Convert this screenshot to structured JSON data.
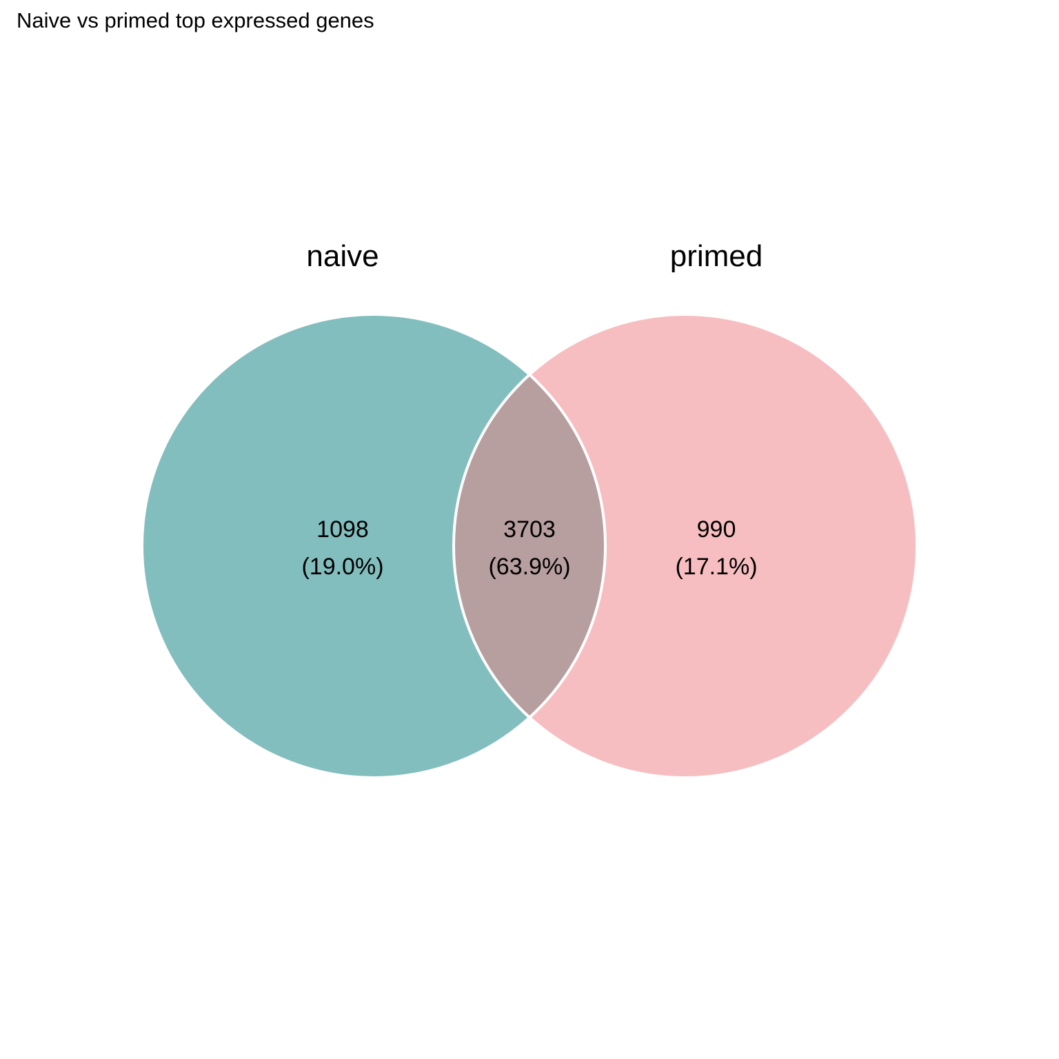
{
  "title": "Naive vs primed top expressed genes",
  "sets": [
    {
      "name": "naive",
      "color": "#83bebf"
    },
    {
      "name": "primed",
      "color": "#f7bec1"
    }
  ],
  "overlap_color": "#b79e9f",
  "outline_color": "#ffffff",
  "regions": {
    "naive_only": {
      "count": "1098",
      "percent": "(19.0%)"
    },
    "both": {
      "count": "3703",
      "percent": "(63.9%)"
    },
    "primed_only": {
      "count": "990",
      "percent": "(17.1%)"
    }
  },
  "chart_data": {
    "type": "venn",
    "title": "Naive vs primed top expressed genes",
    "sets": [
      "naive",
      "primed"
    ],
    "regions": [
      {
        "sets": [
          "naive"
        ],
        "value": 1098,
        "percent": 19.0
      },
      {
        "sets": [
          "naive",
          "primed"
        ],
        "value": 3703,
        "percent": 63.9
      },
      {
        "sets": [
          "primed"
        ],
        "value": 990,
        "percent": 17.1
      }
    ]
  }
}
